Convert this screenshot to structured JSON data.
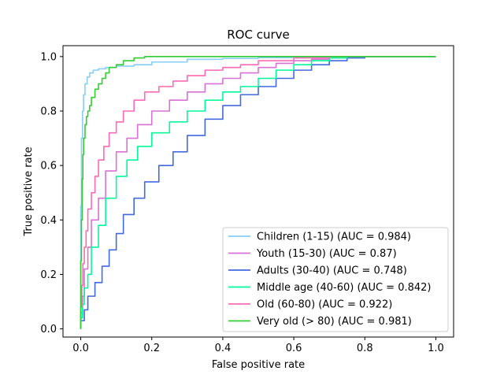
{
  "chart_data": {
    "type": "line",
    "title": "ROC curve",
    "xlabel": "False positive rate",
    "ylabel": "True positive rate",
    "xlim": [
      -0.05,
      1.05
    ],
    "ylim": [
      -0.03,
      1.04
    ],
    "xticks": [
      0.0,
      0.2,
      0.4,
      0.6,
      0.8,
      1.0
    ],
    "xtick_labels": [
      "0.0",
      "0.2",
      "0.4",
      "0.6",
      "0.8",
      "1.0"
    ],
    "yticks": [
      0.0,
      0.2,
      0.4,
      0.6,
      0.8,
      1.0
    ],
    "ytick_labels": [
      "0.0",
      "0.2",
      "0.4",
      "0.6",
      "0.8",
      "1.0"
    ],
    "grid": false,
    "legend_position": "lower-right",
    "series": [
      {
        "name": "Children (1-15) (AUC = 0.984)",
        "color": "#87cefa",
        "x": [
          0,
          0.002,
          0.005,
          0.008,
          0.012,
          0.018,
          0.025,
          0.035,
          0.05,
          0.07,
          0.1,
          0.15,
          0.2,
          0.3,
          0.4,
          0.5,
          0.6,
          0.7,
          0.8,
          1.0
        ],
        "y": [
          0,
          0.45,
          0.7,
          0.8,
          0.86,
          0.9,
          0.925,
          0.94,
          0.95,
          0.955,
          0.96,
          0.965,
          0.97,
          0.98,
          0.99,
          0.993,
          0.996,
          0.998,
          1.0,
          1.0
        ]
      },
      {
        "name": "Youth (15-30) (AUC = 0.87)",
        "color": "#da70d6",
        "x": [
          0,
          0.005,
          0.01,
          0.02,
          0.03,
          0.05,
          0.07,
          0.1,
          0.13,
          0.16,
          0.2,
          0.25,
          0.3,
          0.35,
          0.4,
          0.45,
          0.5,
          0.55,
          0.6,
          0.65,
          0.7,
          0.75,
          0.8,
          1.0
        ],
        "y": [
          0,
          0.06,
          0.12,
          0.22,
          0.3,
          0.4,
          0.48,
          0.58,
          0.65,
          0.7,
          0.75,
          0.8,
          0.84,
          0.87,
          0.9,
          0.92,
          0.94,
          0.96,
          0.975,
          0.985,
          0.99,
          0.995,
          1.0,
          1.0
        ]
      },
      {
        "name": "Adults (30-40) (AUC = 0.748)",
        "color": "#4169e1",
        "x": [
          0,
          0.01,
          0.02,
          0.04,
          0.06,
          0.08,
          0.1,
          0.12,
          0.15,
          0.18,
          0.22,
          0.26,
          0.3,
          0.35,
          0.4,
          0.45,
          0.5,
          0.55,
          0.6,
          0.65,
          0.7,
          0.75,
          0.8,
          0.85,
          1.0
        ],
        "y": [
          0,
          0.03,
          0.07,
          0.12,
          0.17,
          0.23,
          0.29,
          0.35,
          0.42,
          0.48,
          0.54,
          0.6,
          0.65,
          0.71,
          0.77,
          0.82,
          0.86,
          0.89,
          0.92,
          0.95,
          0.97,
          0.985,
          0.995,
          1.0,
          1.0
        ]
      },
      {
        "name": "Middle age (40-60) (AUC = 0.842)",
        "color": "#00fa9a",
        "x": [
          0,
          0.005,
          0.01,
          0.02,
          0.03,
          0.05,
          0.07,
          0.1,
          0.13,
          0.16,
          0.2,
          0.25,
          0.3,
          0.35,
          0.4,
          0.45,
          0.5,
          0.55,
          0.6,
          0.65,
          0.7,
          0.75,
          0.8,
          1.0
        ],
        "y": [
          0,
          0.04,
          0.09,
          0.15,
          0.2,
          0.3,
          0.38,
          0.48,
          0.56,
          0.62,
          0.67,
          0.72,
          0.76,
          0.8,
          0.84,
          0.87,
          0.89,
          0.92,
          0.95,
          0.97,
          0.985,
          0.995,
          1.0,
          1.0
        ]
      },
      {
        "name": "Old (60-80) (AUC = 0.922)",
        "color": "#ff69b4",
        "x": [
          0,
          0.003,
          0.006,
          0.01,
          0.015,
          0.02,
          0.03,
          0.04,
          0.05,
          0.065,
          0.08,
          0.1,
          0.12,
          0.15,
          0.18,
          0.22,
          0.26,
          0.3,
          0.35,
          0.4,
          0.45,
          0.5,
          0.6,
          0.7,
          1.0
        ],
        "y": [
          0,
          0.08,
          0.16,
          0.24,
          0.3,
          0.36,
          0.44,
          0.5,
          0.56,
          0.62,
          0.67,
          0.72,
          0.76,
          0.8,
          0.84,
          0.87,
          0.89,
          0.91,
          0.93,
          0.95,
          0.96,
          0.97,
          0.985,
          0.995,
          1.0
        ]
      },
      {
        "name": "Very old (> 80) (AUC = 0.981)",
        "color": "#32cd32",
        "x": [
          0,
          0.002,
          0.004,
          0.006,
          0.008,
          0.012,
          0.016,
          0.02,
          0.025,
          0.03,
          0.04,
          0.05,
          0.06,
          0.07,
          0.08,
          0.1,
          0.12,
          0.15,
          0.18,
          0.2,
          0.5,
          1.0
        ],
        "y": [
          0,
          0.25,
          0.4,
          0.55,
          0.64,
          0.7,
          0.75,
          0.78,
          0.8,
          0.82,
          0.85,
          0.88,
          0.9,
          0.92,
          0.94,
          0.96,
          0.97,
          0.985,
          0.995,
          1.0,
          1.0,
          1.0
        ]
      }
    ]
  }
}
